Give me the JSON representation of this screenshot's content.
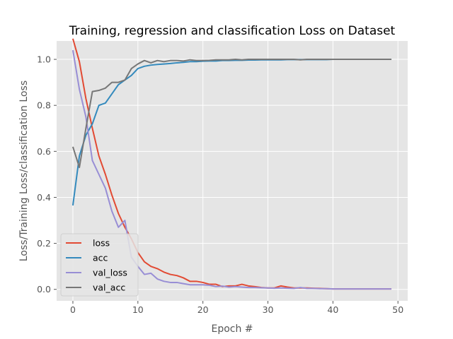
{
  "chart_data": {
    "type": "line",
    "title": "Training, regression and classification Loss on Dataset",
    "xlabel": "Epoch #",
    "ylabel": "Loss/Training Loss/classification Loss",
    "xlim": [
      -2.5,
      51.5
    ],
    "ylim": [
      -0.05,
      1.08
    ],
    "xticks": [
      "0",
      "10",
      "20",
      "30",
      "40",
      "50"
    ],
    "yticks": [
      "0.0",
      "0.2",
      "0.4",
      "0.6",
      "0.8",
      "1.0"
    ],
    "grid": true,
    "legend_position": "lower-left",
    "x": [
      0,
      1,
      2,
      3,
      4,
      5,
      6,
      7,
      8,
      9,
      10,
      11,
      12,
      13,
      14,
      15,
      16,
      17,
      18,
      19,
      20,
      21,
      22,
      23,
      24,
      25,
      26,
      27,
      28,
      29,
      30,
      31,
      32,
      33,
      34,
      35,
      36,
      37,
      38,
      39,
      40,
      41,
      42,
      43,
      44,
      45,
      46,
      47,
      48,
      49
    ],
    "series": [
      {
        "name": "loss",
        "color": "#e24a33",
        "values": [
          1.09,
          0.99,
          0.83,
          0.7,
          0.58,
          0.5,
          0.41,
          0.33,
          0.27,
          0.22,
          0.16,
          0.12,
          0.1,
          0.09,
          0.075,
          0.065,
          0.06,
          0.05,
          0.035,
          0.035,
          0.03,
          0.022,
          0.022,
          0.012,
          0.015,
          0.015,
          0.022,
          0.015,
          0.012,
          0.008,
          0.006,
          0.006,
          0.015,
          0.01,
          0.006,
          0.006,
          0.006,
          0.005,
          0.004,
          0.003,
          0.002,
          0.002,
          0.002,
          0.002,
          0.002,
          0.002,
          0.002,
          0.002,
          0.002,
          0.002
        ]
      },
      {
        "name": "acc",
        "color": "#348abd",
        "values": [
          0.365,
          0.58,
          0.67,
          0.72,
          0.8,
          0.81,
          0.85,
          0.89,
          0.91,
          0.93,
          0.96,
          0.97,
          0.975,
          0.978,
          0.98,
          0.982,
          0.985,
          0.987,
          0.99,
          0.99,
          0.992,
          0.993,
          0.993,
          0.995,
          0.995,
          0.996,
          0.996,
          0.997,
          0.997,
          0.998,
          0.998,
          0.998,
          0.998,
          0.999,
          0.999,
          0.999,
          0.999,
          0.999,
          0.999,
          0.999,
          1.0,
          1.0,
          1.0,
          1.0,
          1.0,
          1.0,
          1.0,
          1.0,
          1.0,
          1.0
        ]
      },
      {
        "name": "val_loss",
        "color": "#988ed5",
        "values": [
          1.04,
          0.87,
          0.75,
          0.56,
          0.5,
          0.44,
          0.34,
          0.27,
          0.3,
          0.14,
          0.1,
          0.065,
          0.07,
          0.045,
          0.035,
          0.03,
          0.03,
          0.025,
          0.02,
          0.02,
          0.02,
          0.018,
          0.012,
          0.014,
          0.01,
          0.012,
          0.01,
          0.008,
          0.008,
          0.007,
          0.006,
          0.005,
          0.006,
          0.005,
          0.004,
          0.008,
          0.004,
          0.004,
          0.003,
          0.003,
          0.002,
          0.002,
          0.002,
          0.002,
          0.002,
          0.002,
          0.002,
          0.002,
          0.002,
          0.002
        ]
      },
      {
        "name": "val_acc",
        "color": "#777777",
        "values": [
          0.62,
          0.53,
          0.7,
          0.86,
          0.865,
          0.875,
          0.9,
          0.9,
          0.91,
          0.96,
          0.98,
          0.995,
          0.985,
          0.995,
          0.99,
          0.995,
          0.995,
          0.993,
          0.998,
          0.995,
          0.995,
          0.996,
          0.998,
          0.998,
          0.998,
          1.0,
          0.998,
          1.0,
          1.0,
          1.0,
          1.0,
          1.0,
          1.0,
          1.0,
          1.0,
          0.998,
          1.0,
          1.0,
          1.0,
          1.0,
          1.0,
          1.0,
          1.0,
          1.0,
          1.0,
          1.0,
          1.0,
          1.0,
          1.0,
          1.0
        ]
      }
    ]
  }
}
